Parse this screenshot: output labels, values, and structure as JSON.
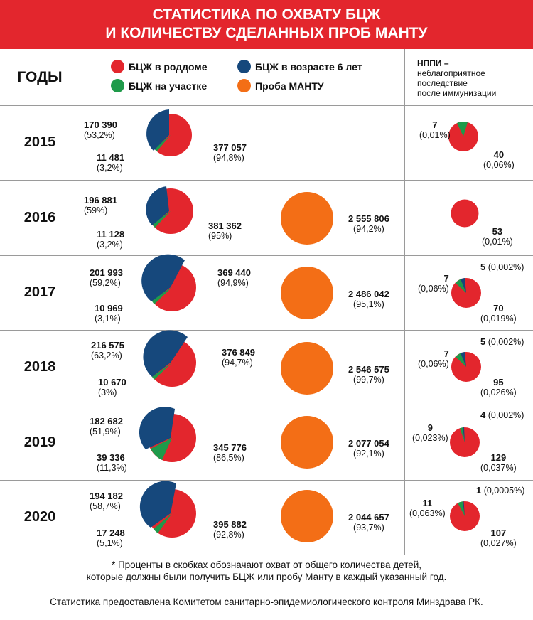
{
  "title": {
    "line1_prefix": "СТАТИСТИКА ПО ОХВАТУ ",
    "line1_bold": "БЦЖ",
    "line2_prefix": "И КОЛИЧЕСТВУ СДЕЛАННЫХ ПРОБ ",
    "line2_bold": "МАНТУ"
  },
  "years_header": "ГОДЫ",
  "legend": {
    "maternity": "БЦЖ в роддоме",
    "age6": "БЦЖ в возрасте 6 лет",
    "district": "БЦЖ на участке",
    "mantoux": "Проба МАНТУ"
  },
  "nppi_header": {
    "title": "НППИ –",
    "line1": "неблагоприятное",
    "line2": "последствие",
    "line3": "после иммунизации"
  },
  "colors": {
    "maternity": "#e3262d",
    "age6": "#16487c",
    "district": "#1f9a4a",
    "mantoux": "#f36e16",
    "header_bg": "#e3262d"
  },
  "footnote": {
    "line1": "* Проценты в скобках обозначают охват от общего количества детей,",
    "line2": "которые должны были получить БЦЖ или пробу Манту в каждый указанный год."
  },
  "source": "Статистика предоставлена Комитетом санитарно-эпидемиологического контроля Минздрава РК.",
  "chart_data": {
    "type": "pie",
    "title": "СТАТИСТИКА ПО ОХВАТУ БЦЖ И КОЛИЧЕСТВУ СДЕЛАННЫХ ПРОБ МАНТУ",
    "rows": [
      {
        "year": "2015",
        "bcg": {
          "maternity": {
            "value": "377 057",
            "pct": "(94,8%)"
          },
          "age6": {
            "value": "170 390",
            "pct": "(53,2%)"
          },
          "district": {
            "value": "11 481",
            "pct": "(3,2%)"
          }
        },
        "mantoux": null,
        "nppi": {
          "a": {
            "value": "7",
            "pct": "(0,01%)"
          },
          "b": {
            "value": "40",
            "pct": "(0,06%)"
          }
        }
      },
      {
        "year": "2016",
        "bcg": {
          "maternity": {
            "value": "381 362",
            "pct": "(95%)"
          },
          "age6": {
            "value": "196 881",
            "pct": "(59%)"
          },
          "district": {
            "value": "11 128",
            "pct": "(3,2%)"
          }
        },
        "mantoux": {
          "value": "2 555 806",
          "pct": "(94,2%)"
        },
        "nppi": {
          "b": {
            "value": "53",
            "pct": "(0,01%)"
          }
        }
      },
      {
        "year": "2017",
        "bcg": {
          "maternity": {
            "value": "369 440",
            "pct": "(94,9%)"
          },
          "age6": {
            "value": "201 993",
            "pct": "(59,2%)"
          },
          "district": {
            "value": "10 969",
            "pct": "(3,1%)"
          }
        },
        "mantoux": {
          "value": "2 486 042",
          "pct": "(95,1%)"
        },
        "nppi": {
          "a": {
            "value": "7",
            "pct": "(0,06%)"
          },
          "b": {
            "value": "70",
            "pct": "(0,019%)"
          },
          "c": {
            "value": "5",
            "pct": "(0,002%)"
          }
        }
      },
      {
        "year": "2018",
        "bcg": {
          "maternity": {
            "value": "376 849",
            "pct": "(94,7%)"
          },
          "age6": {
            "value": "216 575",
            "pct": "(63,2%)"
          },
          "district": {
            "value": "10 670",
            "pct": "(3%)"
          }
        },
        "mantoux": {
          "value": "2 546 575",
          "pct": "(99,7%)"
        },
        "nppi": {
          "a": {
            "value": "7",
            "pct": "(0,06%)"
          },
          "b": {
            "value": "95",
            "pct": "(0,026%)"
          },
          "c": {
            "value": "5",
            "pct": "(0,002%)"
          }
        }
      },
      {
        "year": "2019",
        "bcg": {
          "maternity": {
            "value": "345 776",
            "pct": "(86,5%)"
          },
          "age6": {
            "value": "182 682",
            "pct": "(51,9%)"
          },
          "district": {
            "value": "39 336",
            "pct": "(11,3%)"
          }
        },
        "mantoux": {
          "value": "2 077 054",
          "pct": "(92,1%)"
        },
        "nppi": {
          "a": {
            "value": "9",
            "pct": "(0,023%)"
          },
          "b": {
            "value": "129",
            "pct": "(0,037%)"
          },
          "c": {
            "value": "4",
            "pct": "(0,002%)"
          }
        }
      },
      {
        "year": "2020",
        "bcg": {
          "maternity": {
            "value": "395 882",
            "pct": "(92,8%)"
          },
          "age6": {
            "value": "194 182",
            "pct": "(58,7%)"
          },
          "district": {
            "value": "17 248",
            "pct": "(5,1%)"
          }
        },
        "mantoux": {
          "value": "2 044 657",
          "pct": "(93,7%)"
        },
        "nppi": {
          "a": {
            "value": "11",
            "pct": "(0,063%)"
          },
          "b": {
            "value": "107",
            "pct": "(0,027%)"
          },
          "c": {
            "value": "1",
            "pct": "(0,0005%)"
          }
        }
      }
    ]
  }
}
